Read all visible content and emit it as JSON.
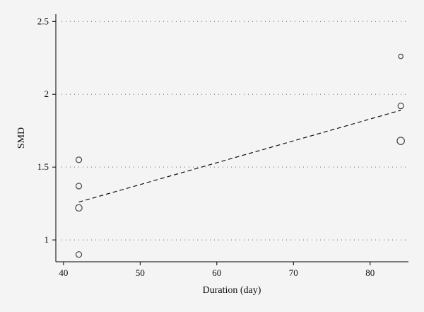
{
  "chart_data": {
    "type": "scatter",
    "xlabel": "Duration (day)",
    "ylabel": "SMD",
    "xlim": [
      39,
      85
    ],
    "ylim": [
      0.85,
      2.55
    ],
    "x_ticks": [
      "40",
      "50",
      "60",
      "70",
      "80"
    ],
    "y_ticks": [
      "1",
      "1.5",
      "2",
      "2.5"
    ],
    "grid": "horizontal dotted at y ticks",
    "series": [
      {
        "type": "scatter",
        "points": [
          {
            "x": 42,
            "y": 0.9,
            "size": "small"
          },
          {
            "x": 42,
            "y": 1.22,
            "size": "medium"
          },
          {
            "x": 42,
            "y": 1.37,
            "size": "small"
          },
          {
            "x": 42,
            "y": 1.55,
            "size": "small"
          },
          {
            "x": 84,
            "y": 1.68,
            "size": "large"
          },
          {
            "x": 84,
            "y": 1.92,
            "size": "small"
          },
          {
            "x": 84,
            "y": 2.26,
            "size": "tiny"
          }
        ]
      },
      {
        "type": "line",
        "style": "dashed",
        "points": [
          {
            "x": 42,
            "y": 1.26
          },
          {
            "x": 84,
            "y": 1.89
          }
        ]
      }
    ]
  }
}
